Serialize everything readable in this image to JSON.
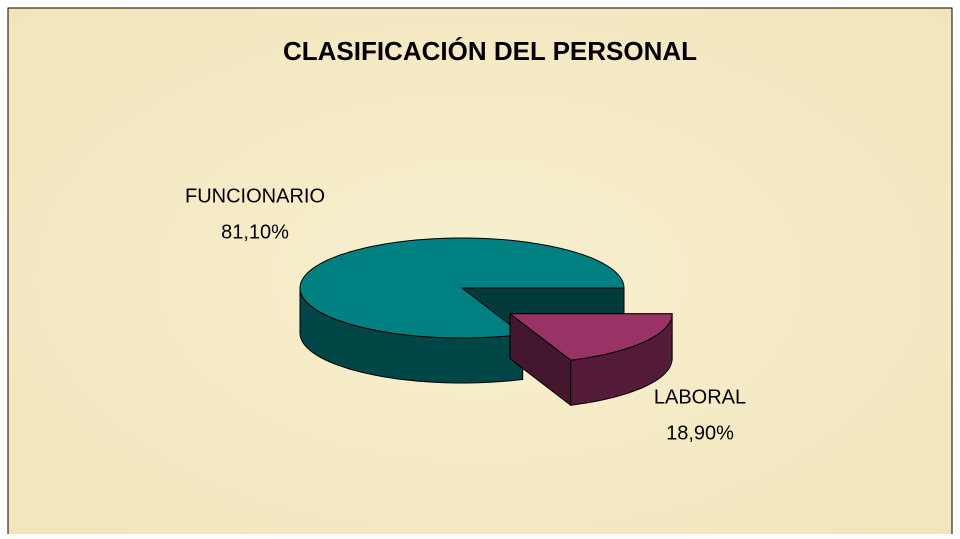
{
  "chart_data": {
    "type": "pie",
    "title": "CLASIFICACIÓN DEL PERSONAL",
    "categories": [
      "FUNCIONARIO",
      "LABORAL"
    ],
    "values": [
      81.1,
      18.9
    ],
    "value_labels": [
      "81,10%",
      "18,90%"
    ],
    "colors": [
      "#008080",
      "#993366"
    ]
  }
}
